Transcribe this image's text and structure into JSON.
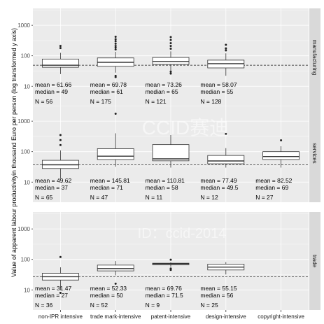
{
  "chart_data": {
    "type": "box",
    "ylabel": "Value of apparent labour productivityin thousand Euro per person (log transformed y axis)",
    "y_scale": "log10",
    "ylim": [
      10,
      1500
    ],
    "y_ticks": [
      {
        "value": 10,
        "label": "10"
      },
      {
        "value": 100,
        "label": "100"
      },
      {
        "value": 1000,
        "label": "1000"
      }
    ],
    "categories": [
      "non-IPR intensive",
      "trade mark-intensive",
      "patent-intensive",
      "design-intensive",
      "copyright-intensive"
    ],
    "colors": {
      "panel": "#ebebeb",
      "grid": "#ffffff",
      "strip": "#d9d9d9",
      "box_fill": "#ffffff",
      "line": "#333333"
    },
    "watermarks": [
      "CCID赛迪",
      "ID：ccid-2014"
    ],
    "panels": [
      {
        "strip": "manufacturing",
        "reference_line": 49,
        "boxes": [
          {
            "category": "non-IPR intensive",
            "whisker_low": 25,
            "q1": 42,
            "median": 49,
            "q3": 78,
            "whisker_high": 125,
            "outliers": [
              180,
              210
            ],
            "ann": {
              "mean": "mean = 61.66",
              "median": "median = 49",
              "n": "N = 56"
            }
          },
          {
            "category": "trade mark-intensive",
            "whisker_low": 28,
            "q1": 45,
            "median": 61,
            "q3": 85,
            "whisker_high": 135,
            "outliers": [
              20,
              22,
              160,
              185,
              210,
              250,
              300,
              350,
              420
            ],
            "ann": {
              "mean": "mean = 69.78",
              "median": "median = 61",
              "n": "N = 175"
            }
          },
          {
            "category": "patent-intensive",
            "whisker_low": 32,
            "q1": 52,
            "median": 65,
            "q3": 88,
            "whisker_high": 140,
            "outliers": [
              26,
              30,
              170,
              210,
              260,
              330,
              410
            ],
            "ann": {
              "mean": "mean = 73.26",
              "median": "median = 65",
              "n": "N = 121"
            }
          },
          {
            "category": "design-intensive",
            "whisker_low": 22,
            "q1": 40,
            "median": 55,
            "q3": 72,
            "whisker_high": 120,
            "outliers": [
              150,
              175,
              230
            ],
            "ann": {
              "mean": "mean = 58.07",
              "median": "median = 55",
              "n": "N = 128"
            }
          }
        ]
      },
      {
        "strip": "services",
        "reference_line": 37,
        "boxes": [
          {
            "category": "non-IPR intensive",
            "whisker_low": 13,
            "q1": 28,
            "median": 37,
            "q3": 52,
            "whisker_high": 110,
            "outliers": [
              165,
              240,
              350
            ],
            "ann": {
              "mean": "mean = 49.62",
              "median": "median = 37",
              "n": "N = 65"
            }
          },
          {
            "category": "trade mark-intensive",
            "whisker_low": 32,
            "q1": 55,
            "median": 71,
            "q3": 125,
            "whisker_high": 400,
            "outliers": [
              1750
            ],
            "ann": {
              "mean": "mean = 145.81",
              "median": "median = 71",
              "n": "N = 47"
            }
          },
          {
            "category": "patent-intensive",
            "whisker_low": 30,
            "q1": 50,
            "median": 58,
            "q3": 170,
            "whisker_high": 350,
            "outliers": [],
            "ann": {
              "mean": "mean = 110.81",
              "median": "median = 58",
              "n": "N = 11"
            }
          },
          {
            "category": "design-intensive",
            "whisker_low": 30,
            "q1": 40,
            "median": 49.5,
            "q3": 75,
            "whisker_high": 130,
            "outliers": [
              380
            ],
            "ann": {
              "mean": "mean = 77.49",
              "median": "median = 49.5",
              "n": "N = 12"
            }
          },
          {
            "category": "copyright-intensive",
            "whisker_low": 30,
            "q1": 55,
            "median": 69,
            "q3": 100,
            "whisker_high": 150,
            "outliers": [
              235
            ],
            "ann": {
              "mean": "mean = 82.52",
              "median": "median = 69",
              "n": "N = 27"
            }
          }
        ]
      },
      {
        "strip": "trade",
        "reference_line": 27,
        "boxes": [
          {
            "category": "non-IPR intensive",
            "whisker_low": 10,
            "q1": 21,
            "median": 27,
            "q3": 35,
            "whisker_high": 55,
            "outliers": [
              120,
              8
            ],
            "ann": {
              "mean": "mean = 31.47",
              "median": "median = 27",
              "n": "N = 36"
            }
          },
          {
            "category": "trade mark-intensive",
            "whisker_low": 30,
            "q1": 42,
            "median": 50,
            "q3": 65,
            "whisker_high": 88,
            "outliers": [
              16
            ],
            "ann": {
              "mean": "mean = 52.33",
              "median": "median = 50",
              "n": "N = 52"
            }
          },
          {
            "category": "patent-intensive",
            "whisker_low": 58,
            "q1": 67,
            "median": 71.5,
            "q3": 75,
            "whisker_high": 80,
            "outliers": [
              45,
              50,
              98
            ],
            "ann": {
              "mean": "mean = 69.76",
              "median": "median = 71.5",
              "n": "N = 9"
            }
          },
          {
            "category": "design-intensive",
            "whisker_low": 32,
            "q1": 45,
            "median": 56,
            "q3": 70,
            "whisker_high": 82,
            "outliers": [],
            "ann": {
              "mean": "mean = 55.15",
              "median": "median = 56",
              "n": "N = 25"
            }
          }
        ]
      }
    ]
  }
}
